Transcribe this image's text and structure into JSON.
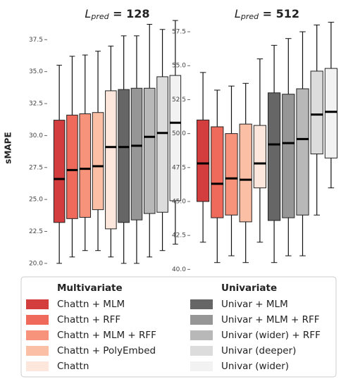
{
  "chart_data": [
    {
      "type": "box",
      "title_parts": [
        "L",
        "pred",
        " = 128"
      ],
      "ylabel": "sMAPE",
      "ylim": [
        19,
        39.5
      ],
      "yticks": [
        {
          "value": 20,
          "label": "20.0"
        },
        22.5,
        {
          "value": 25,
          "label": "25.0"
        },
        27.5,
        {
          "value": 30,
          "label": "30.0"
        },
        32.5,
        {
          "value": 35,
          "label": "35.0"
        },
        37.5
      ],
      "legend_titles": [
        "Multivariate",
        "Univariate"
      ],
      "series": [
        {
          "name": "Chattn + MLM",
          "color": "#d43d3d",
          "values": {
            "whislo": 20,
            "q1": 23.2,
            "med": 26.6,
            "q3": 31.2,
            "whishi": 35.5
          }
        },
        {
          "name": "Chattn + RFF",
          "color": "#ef6a5a",
          "values": {
            "whislo": 20.5,
            "q1": 23.5,
            "med": 27.3,
            "q3": 31.6,
            "whishi": 36.2
          }
        },
        {
          "name": "Chattn + MLM + RFF",
          "color": "#f7937a",
          "values": {
            "whislo": 21,
            "q1": 23.6,
            "med": 27.4,
            "q3": 31.7,
            "whishi": 36.3
          }
        },
        {
          "name": "Chattn + PolyEmbed",
          "color": "#fbbfa6",
          "values": {
            "whislo": 21,
            "q1": 24.2,
            "med": 27.6,
            "q3": 31.8,
            "whishi": 36.6
          }
        },
        {
          "name": "Chattn",
          "color": "#fde6dc",
          "values": {
            "whislo": 20.5,
            "q1": 22.7,
            "med": 29.1,
            "q3": 33.5,
            "whishi": 37
          }
        },
        {
          "name": "Univar + MLM",
          "color": "#666666",
          "values": {
            "whislo": 20,
            "q1": 23.2,
            "med": 29.1,
            "q3": 33.6,
            "whishi": 37.8
          }
        },
        {
          "name": "Univar + MLM + RFF",
          "color": "#969696",
          "values": {
            "whislo": 20,
            "q1": 23.4,
            "med": 29.2,
            "q3": 33.7,
            "whishi": 37.8
          }
        },
        {
          "name": "Univar (wider) + RFF",
          "color": "#b8b8b8",
          "values": {
            "whislo": 20.5,
            "q1": 23.9,
            "med": 29.9,
            "q3": 33.7,
            "whishi": 38.7
          }
        },
        {
          "name": "Univar (deeper)",
          "color": "#dcdcdc",
          "values": {
            "whislo": 21,
            "q1": 24,
            "med": 30.2,
            "q3": 34.6,
            "whishi": 38.3
          }
        },
        {
          "name": "Univar (wider)",
          "color": "#f2f2f2",
          "values": {
            "whislo": 21.5,
            "q1": 24.9,
            "med": 31,
            "q3": 34.7,
            "whishi": 39
          }
        }
      ]
    },
    {
      "type": "box",
      "title_parts": [
        "L",
        "pred",
        " = 512"
      ],
      "ylim": [
        39.5,
        58.8
      ],
      "yticks": [
        {
          "value": 40,
          "label": "40.0"
        },
        42.5,
        {
          "value": 45,
          "label": "45.0"
        },
        47.5,
        {
          "value": 50,
          "label": "50.0"
        },
        52.5,
        {
          "value": 55,
          "label": "55.0"
        },
        57.5
      ],
      "series": [
        {
          "color": "#d43d3d",
          "values": {
            "whislo": 42,
            "q1": 45,
            "med": 47.8,
            "q3": 51,
            "whishi": 54.5
          }
        },
        {
          "color": "#ef6a5a",
          "values": {
            "whislo": 40.5,
            "q1": 43.8,
            "med": 46.3,
            "q3": 50.5,
            "whishi": 53.2
          }
        },
        {
          "color": "#f7937a",
          "values": {
            "whislo": 41,
            "q1": 44,
            "med": 46.7,
            "q3": 50,
            "whishi": 53.5
          }
        },
        {
          "color": "#fbbfa6",
          "values": {
            "whislo": 40.5,
            "q1": 43.5,
            "med": 46.6,
            "q3": 50.7,
            "whishi": 53.7
          }
        },
        {
          "color": "#fde6dc",
          "values": {
            "whislo": 42,
            "q1": 46,
            "med": 47.8,
            "q3": 50.6,
            "whishi": 55.5
          }
        },
        {
          "color": "#666666",
          "values": {
            "whislo": 40.5,
            "q1": 43.6,
            "med": 49.2,
            "q3": 53,
            "whishi": 56.5
          }
        },
        {
          "color": "#969696",
          "values": {
            "whislo": 41,
            "q1": 43.8,
            "med": 49.3,
            "q3": 52.9,
            "whishi": 57
          }
        },
        {
          "color": "#b8b8b8",
          "values": {
            "whislo": 41,
            "q1": 44,
            "med": 49.6,
            "q3": 53.3,
            "whishi": 57.5
          }
        },
        {
          "color": "#dcdcdc",
          "values": {
            "whislo": 44,
            "q1": 48.5,
            "med": 51.4,
            "q3": 54.6,
            "whishi": 58
          }
        },
        {
          "color": "#f2f2f2",
          "values": {
            "whislo": 46,
            "q1": 48.2,
            "med": 51.6,
            "q3": 54.8,
            "whishi": 58.2
          }
        }
      ]
    }
  ]
}
